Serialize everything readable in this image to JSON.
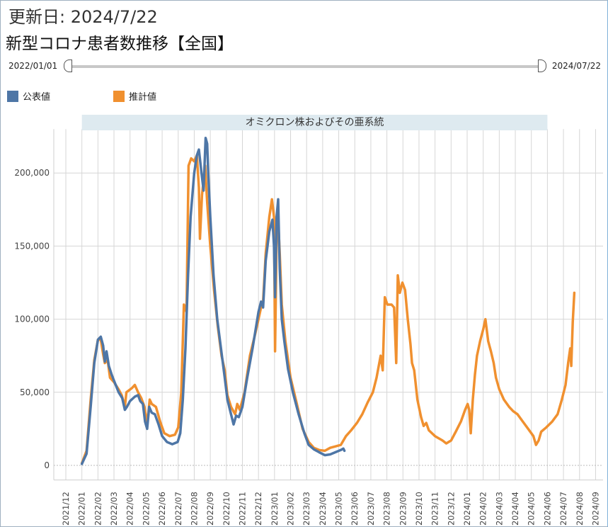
{
  "header": {
    "updated": "更新日: 2024/7/22",
    "title": "新型コロナ患者数推移【全国】"
  },
  "slider": {
    "start_label": "2022/01/01",
    "end_label": "2024/07/22"
  },
  "colors": {
    "official": "#4e76a6",
    "estimated": "#f0902f",
    "band": "#deeaf0",
    "grid": "#d6d6d6"
  },
  "chart_data": {
    "type": "line",
    "title": "",
    "xlabel": "",
    "ylabel": "",
    "ylim": [
      -10000,
      230000
    ],
    "grid": true,
    "legend_position": "top-left",
    "y_ticks": [
      0,
      50000,
      100000,
      150000,
      200000
    ],
    "y_tick_labels": [
      "0",
      "50,000",
      "100,000",
      "150,000",
      "200,000"
    ],
    "x_ticks": [
      "2021/12",
      "2022/01",
      "2022/02",
      "2022/03",
      "2022/04",
      "2022/05",
      "2022/06",
      "2022/07",
      "2022/08",
      "2022/09",
      "2022/10",
      "2022/11",
      "2022/12",
      "2023/01",
      "2023/02",
      "2023/03",
      "2023/04",
      "2023/05",
      "2023/06",
      "2023/07",
      "2023/08",
      "2023/09",
      "2023/10",
      "2023/11",
      "2023/12",
      "2024/01",
      "2024/02",
      "2024/03",
      "2024/04",
      "2024/05",
      "2024/06",
      "2024/07",
      "2024/08",
      "2024/09"
    ],
    "annotation": {
      "label": "オミクロン株およびその亜系統",
      "from": "2022/01",
      "to": "2024/06"
    },
    "series": [
      {
        "name": "公表値",
        "points": [
          [
            "2022/01/01",
            1000
          ],
          [
            "2022/01/10",
            8000
          ],
          [
            "2022/01/18",
            40000
          ],
          [
            "2022/01/25",
            70000
          ],
          [
            "2022/02/01",
            86000
          ],
          [
            "2022/02/06",
            88000
          ],
          [
            "2022/02/10",
            82000
          ],
          [
            "2022/02/13",
            71000
          ],
          [
            "2022/02/16",
            78000
          ],
          [
            "2022/02/20",
            68000
          ],
          [
            "2022/02/25",
            62000
          ],
          [
            "2022/03/01",
            58000
          ],
          [
            "2022/03/10",
            50000
          ],
          [
            "2022/03/17",
            46000
          ],
          [
            "2022/03/22",
            38000
          ],
          [
            "2022/03/26",
            40000
          ],
          [
            "2022/04/01",
            44000
          ],
          [
            "2022/04/10",
            47000
          ],
          [
            "2022/04/16",
            48000
          ],
          [
            "2022/04/20",
            44000
          ],
          [
            "2022/04/25",
            42000
          ],
          [
            "2022/04/29",
            30000
          ],
          [
            "2022/05/03",
            25000
          ],
          [
            "2022/05/07",
            40000
          ],
          [
            "2022/05/12",
            36000
          ],
          [
            "2022/05/18",
            35000
          ],
          [
            "2022/05/25",
            28000
          ],
          [
            "2022/06/01",
            20000
          ],
          [
            "2022/06/10",
            16000
          ],
          [
            "2022/06/20",
            14500
          ],
          [
            "2022/06/30",
            16000
          ],
          [
            "2022/07/05",
            22000
          ],
          [
            "2022/07/10",
            45000
          ],
          [
            "2022/07/15",
            80000
          ],
          [
            "2022/07/20",
            130000
          ],
          [
            "2022/07/25",
            170000
          ],
          [
            "2022/08/01",
            200000
          ],
          [
            "2022/08/06",
            212000
          ],
          [
            "2022/08/10",
            216000
          ],
          [
            "2022/08/15",
            200000
          ],
          [
            "2022/08/19",
            188000
          ],
          [
            "2022/08/23",
            224000
          ],
          [
            "2022/08/26",
            220000
          ],
          [
            "2022/08/28",
            200000
          ],
          [
            "2022/09/01",
            170000
          ],
          [
            "2022/09/07",
            130000
          ],
          [
            "2022/09/14",
            100000
          ],
          [
            "2022/09/21",
            80000
          ],
          [
            "2022/09/28",
            60000
          ],
          [
            "2022/10/03",
            45000
          ],
          [
            "2022/10/10",
            35000
          ],
          [
            "2022/10/15",
            28000
          ],
          [
            "2022/10/20",
            34000
          ],
          [
            "2022/10/25",
            33000
          ],
          [
            "2022/11/01",
            40000
          ],
          [
            "2022/11/10",
            60000
          ],
          [
            "2022/11/20",
            80000
          ],
          [
            "2022/12/01",
            105000
          ],
          [
            "2022/12/06",
            112000
          ],
          [
            "2022/12/10",
            108000
          ],
          [
            "2022/12/15",
            140000
          ],
          [
            "2022/12/22",
            160000
          ],
          [
            "2022/12/28",
            168000
          ],
          [
            "2022/12/31",
            150000
          ],
          [
            "2023/01/02",
            115000
          ],
          [
            "2023/01/05",
            170000
          ],
          [
            "2023/01/08",
            182000
          ],
          [
            "2023/01/11",
            135000
          ],
          [
            "2023/01/15",
            100000
          ],
          [
            "2023/01/20",
            85000
          ],
          [
            "2023/01/27",
            66000
          ],
          [
            "2023/02/05",
            50000
          ],
          [
            "2023/02/15",
            35000
          ],
          [
            "2023/02/25",
            22000
          ],
          [
            "2023/03/05",
            14000
          ],
          [
            "2023/03/15",
            11000
          ],
          [
            "2023/03/25",
            9000
          ],
          [
            "2023/04/05",
            7000
          ],
          [
            "2023/04/15",
            7500
          ],
          [
            "2023/04/25",
            9000
          ],
          [
            "2023/05/05",
            10500
          ],
          [
            "2023/05/10",
            11500
          ],
          [
            "2023/05/12",
            10000
          ]
        ]
      },
      {
        "name": "推計値",
        "points": [
          [
            "2022/01/01",
            1500
          ],
          [
            "2022/01/10",
            10000
          ],
          [
            "2022/01/18",
            45000
          ],
          [
            "2022/01/25",
            72000
          ],
          [
            "2022/02/01",
            86000
          ],
          [
            "2022/02/06",
            86000
          ],
          [
            "2022/02/10",
            76000
          ],
          [
            "2022/02/13",
            70000
          ],
          [
            "2022/02/18",
            72000
          ],
          [
            "2022/02/22",
            60000
          ],
          [
            "2022/03/01",
            57000
          ],
          [
            "2022/03/10",
            52000
          ],
          [
            "2022/03/16",
            48000
          ],
          [
            "2022/03/22",
            40000
          ],
          [
            "2022/03/25",
            50000
          ],
          [
            "2022/04/05",
            53000
          ],
          [
            "2022/04/10",
            55000
          ],
          [
            "2022/04/16",
            50000
          ],
          [
            "2022/04/22",
            46000
          ],
          [
            "2022/04/28",
            40000
          ],
          [
            "2022/05/03",
            28000
          ],
          [
            "2022/05/08",
            45000
          ],
          [
            "2022/05/12",
            42000
          ],
          [
            "2022/05/20",
            40000
          ],
          [
            "2022/05/28",
            30000
          ],
          [
            "2022/06/05",
            22000
          ],
          [
            "2022/06/15",
            20000
          ],
          [
            "2022/06/25",
            21000
          ],
          [
            "2022/07/01",
            26000
          ],
          [
            "2022/07/07",
            50000
          ],
          [
            "2022/07/12",
            110000
          ],
          [
            "2022/07/17",
            105000
          ],
          [
            "2022/07/21",
            205000
          ],
          [
            "2022/07/26",
            210000
          ],
          [
            "2022/08/01",
            208000
          ],
          [
            "2022/08/06",
            212000
          ],
          [
            "2022/08/10",
            190000
          ],
          [
            "2022/08/12",
            155000
          ],
          [
            "2022/08/16",
            185000
          ],
          [
            "2022/08/22",
            205000
          ],
          [
            "2022/08/26",
            180000
          ],
          [
            "2022/09/01",
            150000
          ],
          [
            "2022/09/08",
            120000
          ],
          [
            "2022/09/15",
            95000
          ],
          [
            "2022/09/22",
            75000
          ],
          [
            "2022/09/28",
            65000
          ],
          [
            "2022/10/03",
            48000
          ],
          [
            "2022/10/10",
            40000
          ],
          [
            "2022/10/18",
            35000
          ],
          [
            "2022/10/22",
            42000
          ],
          [
            "2022/10/27",
            38000
          ],
          [
            "2022/11/05",
            50000
          ],
          [
            "2022/11/15",
            75000
          ],
          [
            "2022/11/25",
            90000
          ],
          [
            "2022/12/01",
            100000
          ],
          [
            "2022/12/06",
            108000
          ],
          [
            "2022/12/10",
            112000
          ],
          [
            "2022/12/15",
            145000
          ],
          [
            "2022/12/22",
            170000
          ],
          [
            "2022/12/27",
            182000
          ],
          [
            "2022/12/31",
            170000
          ],
          [
            "2023/01/02",
            78000
          ],
          [
            "2023/01/05",
            155000
          ],
          [
            "2023/01/08",
            168000
          ],
          [
            "2023/01/11",
            145000
          ],
          [
            "2023/01/15",
            110000
          ],
          [
            "2023/01/22",
            85000
          ],
          [
            "2023/02/01",
            60000
          ],
          [
            "2023/02/12",
            42000
          ],
          [
            "2023/02/22",
            25000
          ],
          [
            "2023/03/05",
            16000
          ],
          [
            "2023/03/15",
            12000
          ],
          [
            "2023/03/25",
            10500
          ],
          [
            "2023/04/05",
            10000
          ],
          [
            "2023/04/15",
            12000
          ],
          [
            "2023/04/25",
            13000
          ],
          [
            "2023/05/05",
            14000
          ],
          [
            "2023/05/15",
            20000
          ],
          [
            "2023/05/25",
            24000
          ],
          [
            "2023/06/05",
            29000
          ],
          [
            "2023/06/15",
            35000
          ],
          [
            "2023/06/25",
            43000
          ],
          [
            "2023/07/05",
            50000
          ],
          [
            "2023/07/12",
            60000
          ],
          [
            "2023/07/20",
            75000
          ],
          [
            "2023/07/24",
            65000
          ],
          [
            "2023/07/28",
            115000
          ],
          [
            "2023/08/02",
            110000
          ],
          [
            "2023/08/10",
            110000
          ],
          [
            "2023/08/15",
            108000
          ],
          [
            "2023/08/19",
            70000
          ],
          [
            "2023/08/22",
            130000
          ],
          [
            "2023/08/26",
            118000
          ],
          [
            "2023/08/31",
            125000
          ],
          [
            "2023/09/05",
            120000
          ],
          [
            "2023/09/10",
            100000
          ],
          [
            "2023/09/15",
            83000
          ],
          [
            "2023/09/18",
            70000
          ],
          [
            "2023/09/22",
            65000
          ],
          [
            "2023/09/28",
            45000
          ],
          [
            "2023/10/05",
            33000
          ],
          [
            "2023/10/10",
            27000
          ],
          [
            "2023/10/15",
            29000
          ],
          [
            "2023/10/20",
            24000
          ],
          [
            "2023/11/01",
            20000
          ],
          [
            "2023/11/15",
            17000
          ],
          [
            "2023/11/22",
            15000
          ],
          [
            "2023/12/01",
            17000
          ],
          [
            "2023/12/10",
            23000
          ],
          [
            "2023/12/20",
            30000
          ],
          [
            "2023/12/28",
            38000
          ],
          [
            "2024/01/02",
            42000
          ],
          [
            "2024/01/05",
            38000
          ],
          [
            "2024/01/08",
            22000
          ],
          [
            "2024/01/12",
            45000
          ],
          [
            "2024/01/16",
            62000
          ],
          [
            "2024/01/20",
            75000
          ],
          [
            "2024/01/26",
            85000
          ],
          [
            "2024/02/01",
            93000
          ],
          [
            "2024/02/05",
            100000
          ],
          [
            "2024/02/10",
            85000
          ],
          [
            "2024/02/15",
            78000
          ],
          [
            "2024/02/20",
            70000
          ],
          [
            "2024/02/24",
            60000
          ],
          [
            "2024/03/01",
            52000
          ],
          [
            "2024/03/10",
            45000
          ],
          [
            "2024/03/20",
            40000
          ],
          [
            "2024/03/28",
            37000
          ],
          [
            "2024/04/05",
            35000
          ],
          [
            "2024/04/15",
            30000
          ],
          [
            "2024/04/25",
            25000
          ],
          [
            "2024/05/05",
            20000
          ],
          [
            "2024/05/10",
            14000
          ],
          [
            "2024/05/15",
            17000
          ],
          [
            "2024/05/20",
            23000
          ],
          [
            "2024/05/30",
            26000
          ],
          [
            "2024/06/10",
            30000
          ],
          [
            "2024/06/20",
            35000
          ],
          [
            "2024/06/28",
            45000
          ],
          [
            "2024/07/05",
            55000
          ],
          [
            "2024/07/10",
            70000
          ],
          [
            "2024/07/14",
            80000
          ],
          [
            "2024/07/16",
            68000
          ],
          [
            "2024/07/19",
            98000
          ],
          [
            "2024/07/22",
            118000
          ]
        ]
      }
    ]
  }
}
